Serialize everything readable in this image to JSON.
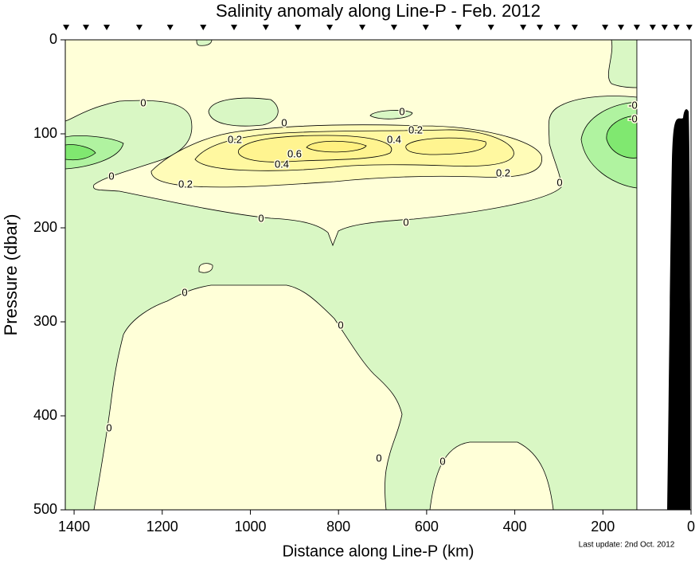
{
  "chart_data": {
    "type": "contour",
    "title": "Salinity anomaly along Line-P - Feb. 2012",
    "x_label": "Distance along Line-P (km)",
    "y_label": "Pressure (dbar)",
    "footnote": "Last update: 2nd Oct. 2012",
    "xlim": [
      1420,
      0
    ],
    "xticks": [
      1400,
      1200,
      1000,
      800,
      600,
      400,
      200,
      0
    ],
    "ylim": [
      0,
      500
    ],
    "y_inverted": true,
    "yticks": [
      0,
      100,
      200,
      300,
      400,
      500
    ],
    "stations": [
      1418,
      1373,
      1326,
      1252,
      1182,
      1107,
      1037,
      965,
      892,
      820,
      746,
      674,
      602,
      528,
      454,
      381,
      343,
      304,
      264,
      195,
      159,
      123,
      87,
      60,
      33,
      4
    ],
    "levels": [
      -0.6,
      -0.4,
      -0.2,
      0,
      0.2,
      0.4,
      0.6,
      0.8
    ],
    "level_colors": [
      "#80e870",
      "#b0f3a0",
      "#d9f7c4",
      "#ffffd8",
      "#fffcb8",
      "#fff8a0",
      "#fff490",
      "#fff080"
    ],
    "contour_labels": [
      "0",
      "0",
      "0",
      "0",
      "0",
      "0",
      "0",
      "0",
      "0",
      "0",
      "0",
      "0",
      "0.2",
      "0.2",
      "0.2",
      "0.2",
      "0.4",
      "0.4",
      "0.6",
      "-0",
      "-0"
    ]
  }
}
